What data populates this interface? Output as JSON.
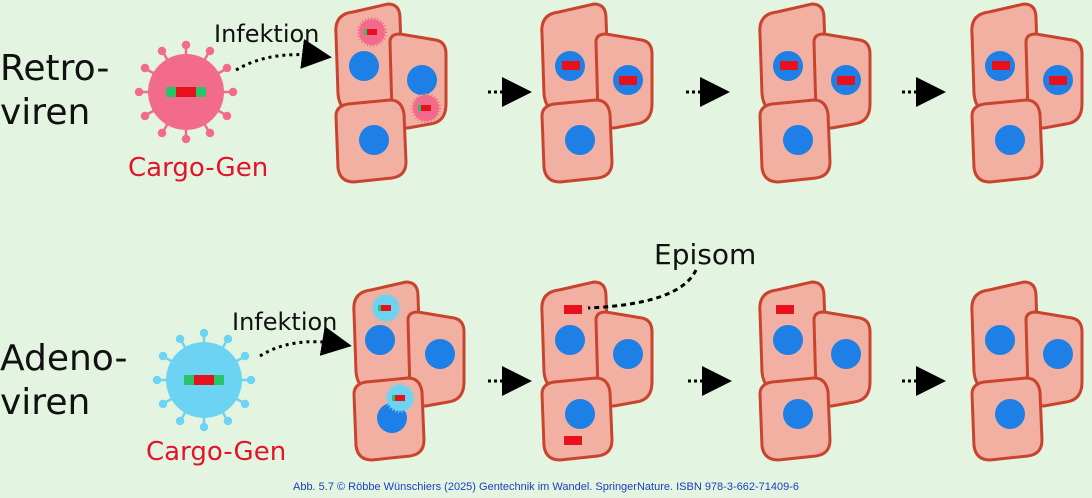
{
  "rows": [
    {
      "label_line1": "Retro-",
      "label_line2": "viren",
      "infection_label": "Infektion",
      "cargo_label": "Cargo-Gen",
      "virus_color": "#f26b8a"
    },
    {
      "label_line1": "Adeno-",
      "label_line2": "viren",
      "infection_label": "Infektion",
      "cargo_label": "Cargo-Gen",
      "virus_color": "#6dd3f3"
    }
  ],
  "episom_label": "Episom",
  "caption": "Abb. 5.7 © Röbbe Wünschiers (2025) Gentechnik im Wandel. SpringerNature. ISBN 978-3-662-71409-6",
  "colors": {
    "background": "#e3f5e1",
    "cell_fill": "#f2b0a2",
    "cell_stroke": "#c9442f",
    "nucleus": "#1e7fe6",
    "gene_red": "#e8101c",
    "gene_green": "#27c46a"
  }
}
